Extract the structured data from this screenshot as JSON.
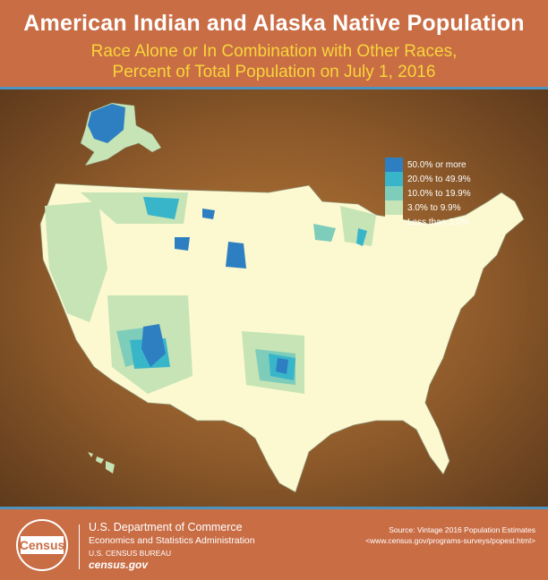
{
  "header": {
    "title": "American Indian and Alaska Native Population",
    "subtitle_line1": "Race Alone or In Combination with Other Races,",
    "subtitle_line2": "Percent of Total Population on July 1, 2016"
  },
  "legend": {
    "items": [
      {
        "label": "50.0% or more",
        "color": "#2e7fc1"
      },
      {
        "label": "20.0% to 49.9%",
        "color": "#39b5c9"
      },
      {
        "label": "10.0% to 19.9%",
        "color": "#7ecdbb"
      },
      {
        "label": "3.0% to 9.9%",
        "color": "#c6e4b5"
      },
      {
        "label": "Less than 3.0%",
        "color": "#fcf8cf"
      }
    ]
  },
  "footer": {
    "logo_text": "United States Census Bureau",
    "department": "U.S. Department of Commerce",
    "administration": "Economics and Statistics Administration",
    "bureau": "U.S. CENSUS BUREAU",
    "website": "census.gov",
    "source": "Source: Vintage 2016 Population Estimates",
    "source_url": "<www.census.gov/programs-surveys/popest.html>"
  },
  "colors": {
    "header_bg": "#c96d45",
    "rule": "#4d93bf",
    "title": "#ffffff",
    "subtitle": "#f7d63a"
  }
}
